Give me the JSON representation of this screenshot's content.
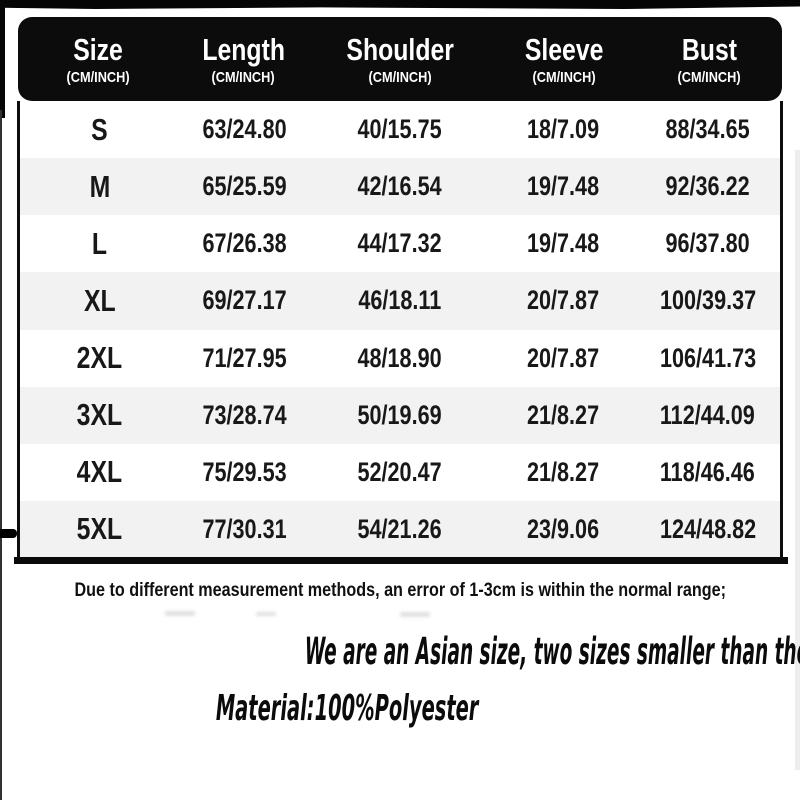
{
  "table": {
    "columns": [
      {
        "label": "Size",
        "sub": "(CM/INCH)"
      },
      {
        "label": "Length",
        "sub": "(CM/INCH)"
      },
      {
        "label": "Shoulder",
        "sub": "(CM/INCH)"
      },
      {
        "label": "Sleeve",
        "sub": "(CM/INCH)"
      },
      {
        "label": "Bust",
        "sub": "(CM/INCH)"
      }
    ],
    "rows": [
      [
        "S",
        "63/24.80",
        "40/15.75",
        "18/7.09",
        "88/34.65"
      ],
      [
        "M",
        "65/25.59",
        "42/16.54",
        "19/7.48",
        "92/36.22"
      ],
      [
        "L",
        "67/26.38",
        "44/17.32",
        "19/7.48",
        "96/37.80"
      ],
      [
        "XL",
        "69/27.17",
        "46/18.11",
        "20/7.87",
        "100/39.37"
      ],
      [
        "2XL",
        "71/27.95",
        "48/18.90",
        "20/7.87",
        "106/41.73"
      ],
      [
        "3XL",
        "73/28.74",
        "50/19.69",
        "21/8.27",
        "112/44.09"
      ],
      [
        "4XL",
        "75/29.53",
        "52/20.47",
        "21/8.27",
        "118/46.46"
      ],
      [
        "5XL",
        "77/30.31",
        "54/21.26",
        "23/9.06",
        "124/48.82"
      ]
    ]
  },
  "notes": {
    "measurement": "Due to different measurement methods, an error of 1-3cm is within the normal range;",
    "asian_size": "We are an Asian size, two sizes smaller than the European",
    "material": "Material:100%Polyester"
  },
  "colors": {
    "header_bg": "#0c0c0c",
    "header_text": "#ffffff",
    "row_alt_bg": "#f2f2f2",
    "body_text": "#181818"
  }
}
